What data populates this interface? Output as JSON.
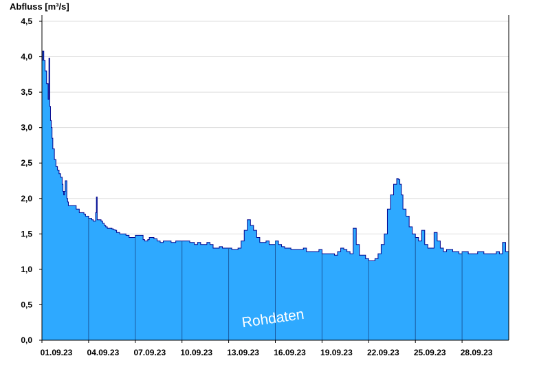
{
  "chart_data": {
    "type": "area",
    "ylabel": "Abfluss [m³/s]",
    "ylim": [
      0,
      4.5
    ],
    "yticks": [
      "0,0",
      "0,5",
      "1,0",
      "1,5",
      "2,0",
      "2,5",
      "3,0",
      "3,5",
      "4,0",
      "4,5"
    ],
    "xlim_days": [
      0,
      30
    ],
    "xticks": [
      "01.09.23",
      "04.09.23",
      "07.09.23",
      "10.09.23",
      "13.09.23",
      "16.09.23",
      "19.09.23",
      "22.09.23",
      "25.09.23",
      "28.09.23"
    ],
    "grid": true,
    "watermark": "Rohdaten",
    "colors": {
      "fill": "#2ea9ff",
      "line": "#00008b",
      "grid": "#dddddd",
      "day_line": "#1a5aa0"
    },
    "series": [
      {
        "x_day": [
          0.0,
          0.05,
          0.12,
          0.2,
          0.3,
          0.4,
          0.45,
          0.5,
          0.55,
          0.6,
          0.65,
          0.7,
          0.8,
          0.9,
          1.0,
          1.1,
          1.2,
          1.3,
          1.35,
          1.4,
          1.45,
          1.5,
          1.6,
          1.65,
          1.7,
          1.8,
          1.9,
          2.0,
          2.2,
          2.4,
          2.7,
          2.8,
          3.0,
          3.2,
          3.3,
          3.45,
          3.5,
          3.55,
          3.8,
          3.9,
          4.0,
          4.1,
          4.2,
          4.3,
          4.5,
          4.6,
          4.7,
          4.8,
          4.9,
          5.0,
          5.2,
          5.4,
          5.6,
          5.8,
          6.0,
          6.5,
          6.6,
          6.7,
          6.8,
          6.9,
          7.0,
          7.2,
          7.4,
          7.6,
          7.8,
          8.0,
          8.3,
          8.6,
          9.0,
          9.5,
          9.8,
          10.0,
          10.2,
          10.4,
          10.6,
          10.8,
          11.0,
          11.2,
          11.4,
          11.6,
          11.8,
          12.0,
          12.2,
          12.4,
          12.6,
          12.8,
          13.0,
          13.2,
          13.4,
          13.6,
          13.8,
          14.0,
          14.2,
          14.4,
          14.6,
          14.8,
          15.0,
          15.2,
          15.4,
          15.6,
          15.8,
          16.0,
          16.4,
          16.8,
          17.0,
          17.4,
          17.8,
          18.0,
          18.4,
          18.8,
          19.0,
          19.2,
          19.4,
          19.6,
          19.8,
          20.0,
          20.2,
          20.4,
          20.6,
          20.8,
          21.0,
          21.2,
          21.4,
          21.6,
          21.8,
          22.0,
          22.2,
          22.4,
          22.6,
          22.8,
          22.9,
          23.0,
          23.1,
          23.2,
          23.4,
          23.6,
          23.8,
          24.0,
          24.2,
          24.4,
          24.6,
          24.8,
          25.0,
          25.2,
          25.4,
          25.6,
          25.8,
          26.0,
          26.4,
          26.8,
          27.0,
          27.4,
          27.8,
          28.0,
          28.4,
          28.8,
          29.0,
          29.2,
          29.4,
          29.6,
          29.8,
          30.0
        ],
        "y": [
          3.95,
          4.08,
          3.95,
          3.8,
          3.62,
          3.4,
          3.98,
          3.3,
          3.1,
          3.0,
          2.85,
          2.7,
          2.55,
          2.45,
          2.4,
          2.35,
          2.3,
          2.2,
          2.1,
          2.05,
          2.1,
          2.25,
          2.0,
          1.95,
          1.9,
          1.9,
          1.9,
          1.9,
          1.85,
          1.8,
          1.78,
          1.75,
          1.72,
          1.7,
          1.68,
          1.8,
          2.02,
          1.7,
          1.68,
          1.65,
          1.62,
          1.6,
          1.58,
          1.58,
          1.57,
          1.56,
          1.55,
          1.52,
          1.52,
          1.5,
          1.5,
          1.48,
          1.45,
          1.45,
          1.48,
          1.42,
          1.4,
          1.4,
          1.42,
          1.45,
          1.45,
          1.43,
          1.4,
          1.38,
          1.4,
          1.4,
          1.38,
          1.4,
          1.4,
          1.38,
          1.35,
          1.38,
          1.35,
          1.35,
          1.38,
          1.35,
          1.3,
          1.3,
          1.32,
          1.3,
          1.3,
          1.3,
          1.28,
          1.28,
          1.3,
          1.4,
          1.55,
          1.7,
          1.62,
          1.55,
          1.45,
          1.38,
          1.38,
          1.4,
          1.35,
          1.35,
          1.4,
          1.35,
          1.32,
          1.3,
          1.3,
          1.28,
          1.28,
          1.3,
          1.25,
          1.25,
          1.28,
          1.22,
          1.22,
          1.2,
          1.25,
          1.3,
          1.28,
          1.25,
          1.22,
          1.58,
          1.35,
          1.2,
          1.2,
          1.15,
          1.12,
          1.12,
          1.15,
          1.22,
          1.35,
          1.5,
          1.85,
          2.05,
          2.2,
          2.28,
          2.27,
          2.2,
          2.05,
          1.85,
          1.75,
          1.6,
          1.5,
          1.45,
          1.4,
          1.55,
          1.35,
          1.3,
          1.3,
          1.52,
          1.4,
          1.3,
          1.25,
          1.28,
          1.25,
          1.22,
          1.25,
          1.22,
          1.22,
          1.25,
          1.22,
          1.22,
          1.22,
          1.25,
          1.22,
          1.38,
          1.25,
          1.15
        ]
      }
    ]
  }
}
